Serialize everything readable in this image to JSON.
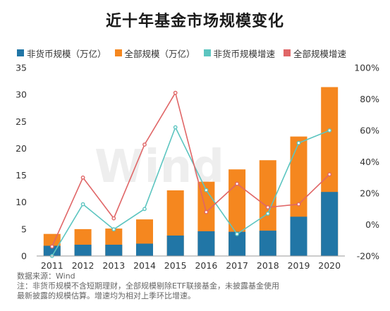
{
  "chart_data": {
    "type": "bar",
    "title": "近十年基金市场规模变化",
    "categories": [
      "2011",
      "2012",
      "2013",
      "2014",
      "2015",
      "2016",
      "2017",
      "2018",
      "2019",
      "2020"
    ],
    "series": [
      {
        "name": "非货币规模（万亿）",
        "kind": "bar",
        "axis": "left",
        "color": "#2176a6",
        "values": [
          1.9,
          2.1,
          2.1,
          2.3,
          3.8,
          4.6,
          4.5,
          4.7,
          7.3,
          11.9
        ]
      },
      {
        "name": "全部规模（万亿）",
        "kind": "bar",
        "axis": "left",
        "color": "#f5871f",
        "values": [
          4.1,
          5.0,
          5.1,
          6.8,
          12.2,
          13.8,
          16.1,
          17.8,
          22.2,
          31.4
        ]
      },
      {
        "name": "非货币规模增速",
        "kind": "line",
        "axis": "right",
        "color": "#5cc5c0",
        "values": [
          -20,
          13,
          -3,
          10,
          62,
          22,
          -6,
          7,
          52,
          60
        ]
      },
      {
        "name": "全部规模增速",
        "kind": "line",
        "axis": "right",
        "color": "#e06667",
        "values": [
          -14,
          30,
          4,
          51,
          84,
          8,
          26,
          11,
          13,
          32
        ]
      }
    ],
    "left_axis": {
      "min": 0,
      "max": 35,
      "step": 5,
      "ticks": [
        "0",
        "5",
        "10",
        "15",
        "20",
        "25",
        "30",
        "35"
      ]
    },
    "right_axis": {
      "min": -20,
      "max": 100,
      "step": 20,
      "ticks": [
        "-20%",
        "0%",
        "20%",
        "40%",
        "60%",
        "80%",
        "100%"
      ]
    },
    "legend_position": "top",
    "grid": false,
    "watermark": "Wind",
    "notes": [
      "数据来源：Wind",
      "注：非货币规模不含短期理财，全部规模剔除ETF联接基金，未披露基金使用",
      "最新披露的规模估算。增速均为相对上季环比增速。"
    ]
  }
}
